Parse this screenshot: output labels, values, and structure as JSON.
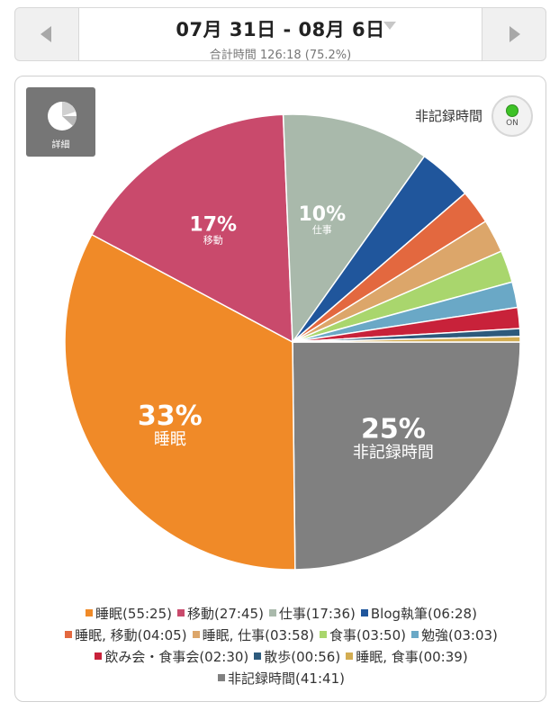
{
  "header": {
    "date_range": "07月 31日 - 08月 6日",
    "total_time": "合計時間 126:18 (75.2%)"
  },
  "detail_button": {
    "label": "詳細"
  },
  "toggle": {
    "label": "非記録時間",
    "state": "ON"
  },
  "chart_data": {
    "type": "pie",
    "slices": [
      {
        "name": "非記録時間",
        "value": "41:41",
        "minutes": 2501,
        "color": "#808080",
        "pct_label": "25%",
        "show_label": true
      },
      {
        "name": "睡眠",
        "value": "55:25",
        "minutes": 3325,
        "color": "#f08a28",
        "pct_label": "33%",
        "show_label": true
      },
      {
        "name": "移動",
        "value": "27:45",
        "minutes": 1665,
        "color": "#c94a6c",
        "pct_label": "17%",
        "show_label": true
      },
      {
        "name": "仕事",
        "value": "17:36",
        "minutes": 1056,
        "color": "#a9b9ab",
        "pct_label": "10%",
        "show_label": true
      },
      {
        "name": "Blog執筆",
        "value": "06:28",
        "minutes": 388,
        "color": "#20569c",
        "pct_label": "",
        "show_label": false
      },
      {
        "name": "睡眠, 移動",
        "value": "04:05",
        "minutes": 245,
        "color": "#e3683f",
        "pct_label": "",
        "show_label": false
      },
      {
        "name": "睡眠, 仕事",
        "value": "03:58",
        "minutes": 238,
        "color": "#dca66a",
        "pct_label": "",
        "show_label": false
      },
      {
        "name": "食事",
        "value": "03:50",
        "minutes": 230,
        "color": "#a9d66d",
        "pct_label": "",
        "show_label": false
      },
      {
        "name": "勉強",
        "value": "03:03",
        "minutes": 183,
        "color": "#6aa8c6",
        "pct_label": "",
        "show_label": false
      },
      {
        "name": "飲み会・食事会",
        "value": "02:30",
        "minutes": 150,
        "color": "#c8223a",
        "pct_label": "",
        "show_label": false
      },
      {
        "name": "散歩",
        "value": "00:56",
        "minutes": 56,
        "color": "#2d5a7c",
        "pct_label": "",
        "show_label": false
      },
      {
        "name": "睡眠, 食事",
        "value": "00:39",
        "minutes": 39,
        "color": "#d3ad52",
        "pct_label": "",
        "show_label": false
      }
    ],
    "legend_lines": [
      [
        "睡眠",
        "移動",
        "仕事",
        "Blog執筆"
      ],
      [
        "睡眠, 移動",
        "睡眠, 仕事",
        "食事",
        "勉強"
      ],
      [
        "飲み会・食事会",
        "散歩",
        "睡眠, 食事"
      ],
      [
        "非記録時間"
      ]
    ]
  }
}
